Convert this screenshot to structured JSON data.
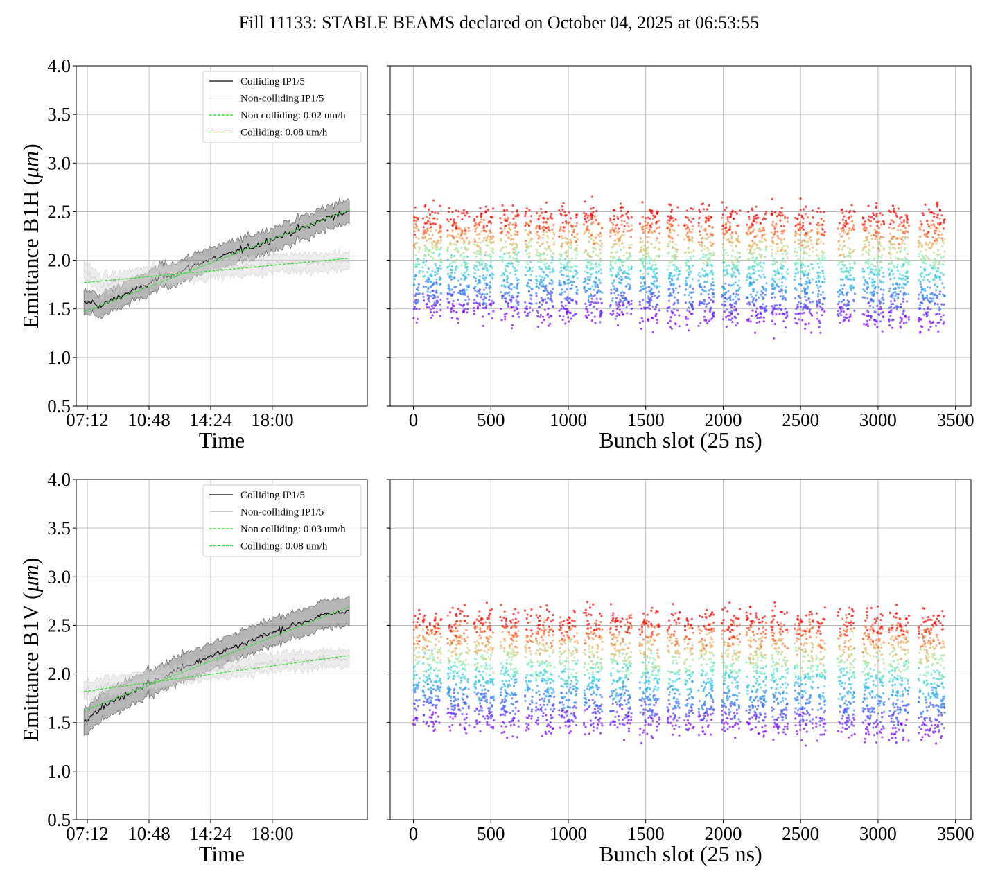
{
  "figure": {
    "title": "Fill 11133: STABLE BEAMS declared on October 04, 2025 at 06:53:55"
  },
  "chart_data": [
    {
      "id": "b1h-time",
      "type": "line",
      "xlabel": "Time",
      "ylabel": "Emittance B1H (μm)",
      "ylabel_main": "Emittance B1H (",
      "ylabel_unit": "μm",
      "ylabel_close": ")",
      "ylim": [
        0.5,
        4.0
      ],
      "yticks": [
        "0.5",
        "1.0",
        "1.5",
        "2.0",
        "2.5",
        "3.0",
        "3.5",
        "4.0"
      ],
      "xticks": [
        "07:12",
        "10:48",
        "14:24",
        "18:00"
      ],
      "xlim_hours": [
        6.55,
        23.55
      ],
      "grid": true,
      "legend_position": "top-right",
      "legend": [
        "Colliding IP1/5",
        "Non-colliding IP1/5",
        "Non colliding: 0.02 um/h",
        "Colliding: 0.08 um/h"
      ],
      "series": [
        {
          "name": "Colliding IP1/5",
          "color": "#000000",
          "x": [
            7.0,
            7.5,
            8.0,
            8.5,
            9.0,
            9.5,
            10.0,
            10.5,
            11.0,
            11.5,
            12.0,
            12.5,
            13.0,
            13.5,
            14.0,
            14.5,
            15.0,
            15.5,
            16.0,
            16.5,
            17.0,
            17.5,
            18.0,
            18.5,
            19.0,
            19.5,
            20.0,
            20.5,
            21.0,
            21.5,
            22.0,
            22.5
          ],
          "y": [
            1.55,
            1.57,
            1.52,
            1.58,
            1.62,
            1.66,
            1.7,
            1.73,
            1.78,
            1.83,
            1.85,
            1.87,
            1.91,
            1.95,
            1.99,
            2.01,
            2.03,
            2.06,
            2.1,
            2.12,
            2.15,
            2.18,
            2.22,
            2.25,
            2.28,
            2.32,
            2.34,
            2.38,
            2.42,
            2.46,
            2.47,
            2.5
          ],
          "band": 0.12
        },
        {
          "name": "Non-colliding IP1/5",
          "color": "#cfcfcf",
          "x": [
            7.0,
            7.5,
            8.0,
            8.5,
            9.0,
            9.5,
            10.0,
            10.5,
            11.0,
            11.5,
            12.0,
            12.5,
            13.0,
            13.5,
            14.0,
            14.5,
            15.0,
            15.5,
            16.0,
            16.5,
            17.0,
            17.5,
            18.0,
            18.5,
            19.0,
            19.5,
            20.0,
            20.5,
            21.0,
            21.5,
            22.0,
            22.5
          ],
          "y": [
            1.9,
            1.82,
            1.75,
            1.76,
            1.78,
            1.8,
            1.82,
            1.82,
            1.84,
            1.86,
            1.86,
            1.87,
            1.88,
            1.89,
            1.9,
            1.91,
            1.91,
            1.92,
            1.93,
            1.94,
            1.94,
            1.95,
            1.96,
            1.97,
            1.97,
            1.98,
            1.99,
            1.98,
            1.98,
            2.0,
            1.99,
            2.0
          ],
          "band": 0.09
        },
        {
          "name": "Non colliding: 0.02 um/h",
          "color": "#22e022",
          "dashed": true,
          "x": [
            7.0,
            22.5
          ],
          "y": [
            1.77,
            2.02
          ]
        },
        {
          "name": "Colliding: 0.08 um/h",
          "color": "#22e022",
          "dashed": true,
          "x": [
            7.0,
            22.5
          ],
          "y": [
            1.47,
            2.52
          ]
        }
      ]
    },
    {
      "id": "b1h-bunch",
      "type": "scatter",
      "xlabel": "Bunch slot (25 ns)",
      "ylim": [
        0.5,
        4.0
      ],
      "xlim": [
        -150,
        3600
      ],
      "xticks": [
        "0",
        "500",
        "1000",
        "1500",
        "2000",
        "2500",
        "3000",
        "3500"
      ],
      "grid": true,
      "colormap": "rainbow (early = purple/blue, late = red)",
      "trains": [
        [
          0,
          40
        ],
        [
          60,
          180
        ],
        [
          220,
          360
        ],
        [
          390,
          520
        ],
        [
          560,
          680
        ],
        [
          720,
          770
        ],
        [
          790,
          910
        ],
        [
          940,
          1060
        ],
        [
          1100,
          1220
        ],
        [
          1270,
          1410
        ],
        [
          1460,
          1590
        ],
        [
          1640,
          1720
        ],
        [
          1750,
          1810
        ],
        [
          1840,
          1940
        ],
        [
          1990,
          2110
        ],
        [
          2150,
          2280
        ],
        [
          2310,
          2420
        ],
        [
          2460,
          2580
        ],
        [
          2600,
          2660
        ],
        [
          2740,
          2850
        ],
        [
          2900,
          3040
        ],
        [
          3070,
          3200
        ],
        [
          3260,
          3430
        ]
      ],
      "emittance_start": 1.5,
      "emittance_end": 2.45,
      "spread": 0.12
    },
    {
      "id": "b1v-time",
      "type": "line",
      "xlabel": "Time",
      "ylabel": "Emittance B1V (μm)",
      "ylabel_main": "Emittance B1V (",
      "ylabel_unit": "μm",
      "ylabel_close": ")",
      "ylim": [
        0.5,
        4.0
      ],
      "yticks": [
        "0.5",
        "1.0",
        "1.5",
        "2.0",
        "2.5",
        "3.0",
        "3.5",
        "4.0"
      ],
      "xticks": [
        "07:12",
        "10:48",
        "14:24",
        "18:00"
      ],
      "xlim_hours": [
        6.55,
        23.55
      ],
      "grid": true,
      "legend_position": "top-right",
      "legend": [
        "Colliding IP1/5",
        "Non-colliding IP1/5",
        "Non colliding: 0.03 um/h",
        "Colliding: 0.08 um/h"
      ],
      "series": [
        {
          "name": "Colliding IP1/5",
          "color": "#000000",
          "x": [
            7.0,
            7.5,
            8.0,
            8.5,
            9.0,
            9.5,
            10.0,
            10.5,
            11.0,
            11.5,
            12.0,
            12.5,
            13.0,
            13.5,
            14.0,
            14.5,
            15.0,
            15.5,
            16.0,
            16.5,
            17.0,
            17.5,
            18.0,
            18.5,
            19.0,
            19.5,
            20.0,
            20.5,
            21.0,
            21.5,
            22.0,
            22.5
          ],
          "y": [
            1.48,
            1.6,
            1.66,
            1.7,
            1.75,
            1.79,
            1.84,
            1.89,
            1.92,
            1.96,
            2.0,
            2.05,
            2.08,
            2.12,
            2.16,
            2.19,
            2.22,
            2.26,
            2.29,
            2.33,
            2.36,
            2.4,
            2.42,
            2.46,
            2.49,
            2.52,
            2.55,
            2.57,
            2.6,
            2.62,
            2.63,
            2.65
          ],
          "band": 0.14
        },
        {
          "name": "Non-colliding IP1/5",
          "color": "#cfcfcf",
          "x": [
            7.0,
            7.5,
            8.0,
            8.5,
            9.0,
            9.5,
            10.0,
            10.5,
            11.0,
            11.5,
            12.0,
            12.5,
            13.0,
            13.5,
            14.0,
            14.5,
            15.0,
            15.5,
            16.0,
            16.5,
            17.0,
            17.5,
            18.0,
            18.5,
            19.0,
            19.5,
            20.0,
            20.5,
            21.0,
            21.5,
            22.0,
            22.5
          ],
          "y": [
            1.85,
            1.83,
            1.86,
            1.88,
            1.89,
            1.91,
            1.92,
            1.93,
            1.95,
            1.96,
            1.98,
            1.99,
            2.0,
            2.01,
            2.03,
            2.04,
            2.05,
            2.06,
            2.07,
            2.08,
            2.09,
            2.1,
            2.11,
            2.12,
            2.13,
            2.13,
            2.14,
            2.15,
            2.15,
            2.16,
            2.16,
            2.17
          ],
          "band": 0.09
        },
        {
          "name": "Non colliding: 0.03 um/h",
          "color": "#22e022",
          "dashed": true,
          "x": [
            7.0,
            22.5
          ],
          "y": [
            1.82,
            2.19
          ]
        },
        {
          "name": "Colliding: 0.08 um/h",
          "color": "#22e022",
          "dashed": true,
          "x": [
            7.0,
            22.5
          ],
          "y": [
            1.62,
            2.69
          ]
        }
      ]
    },
    {
      "id": "b1v-bunch",
      "type": "scatter",
      "xlabel": "Bunch slot (25 ns)",
      "ylim": [
        0.5,
        4.0
      ],
      "xlim": [
        -150,
        3600
      ],
      "xticks": [
        "0",
        "500",
        "1000",
        "1500",
        "2000",
        "2500",
        "3000",
        "3500"
      ],
      "grid": true,
      "colormap": "rainbow (early = purple/blue, late = red)",
      "trains": [
        [
          0,
          40
        ],
        [
          60,
          180
        ],
        [
          220,
          360
        ],
        [
          390,
          520
        ],
        [
          560,
          680
        ],
        [
          720,
          770
        ],
        [
          790,
          910
        ],
        [
          940,
          1060
        ],
        [
          1100,
          1220
        ],
        [
          1270,
          1410
        ],
        [
          1460,
          1590
        ],
        [
          1640,
          1720
        ],
        [
          1750,
          1810
        ],
        [
          1840,
          1940
        ],
        [
          1990,
          2110
        ],
        [
          2150,
          2280
        ],
        [
          2310,
          2420
        ],
        [
          2460,
          2580
        ],
        [
          2600,
          2660
        ],
        [
          2740,
          2850
        ],
        [
          2900,
          3040
        ],
        [
          3070,
          3200
        ],
        [
          3260,
          3430
        ]
      ],
      "emittance_start": 1.55,
      "emittance_end": 2.55,
      "spread": 0.13
    }
  ]
}
